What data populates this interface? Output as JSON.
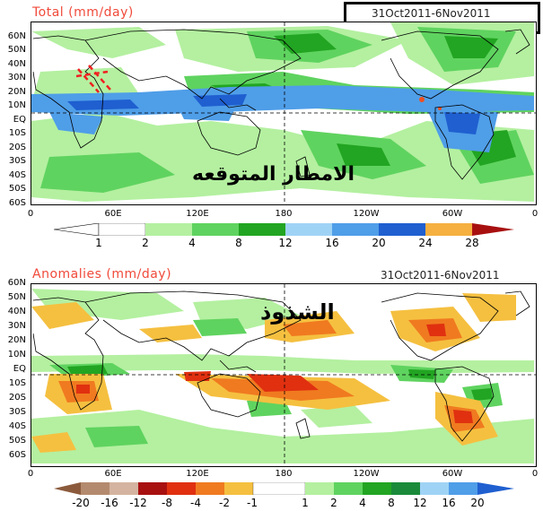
{
  "top_panel": {
    "title": "Total (mm/day)",
    "date": "31Oct2011-6Nov2011",
    "arabic_label": "الامطار المتوقعه",
    "lat_labels": [
      "60N",
      "50N",
      "40N",
      "30N",
      "20N",
      "10N",
      "EQ",
      "10S",
      "20S",
      "30S",
      "40S",
      "50S",
      "60S"
    ],
    "lon_labels": [
      "0",
      "60E",
      "120E",
      "180",
      "120W",
      "60W",
      "0"
    ],
    "colorbar": {
      "labels": [
        "1",
        "2",
        "4",
        "8",
        "12",
        "16",
        "20",
        "24",
        "28"
      ],
      "colors": [
        "#ffffff",
        "#b4f0a0",
        "#5fd35f",
        "#22a522",
        "#9fd3f5",
        "#4f9ee8",
        "#1f5fd0",
        "#f5b040",
        "#f05020",
        "#a81010"
      ]
    }
  },
  "bottom_panel": {
    "title": "Anomalies (mm/day)",
    "date": "31Oct2011-6Nov2011",
    "arabic_label": "الشذوذ",
    "lat_labels": [
      "60N",
      "50N",
      "40N",
      "30N",
      "20N",
      "10N",
      "EQ",
      "10S",
      "20S",
      "30S",
      "40S",
      "50S",
      "60S"
    ],
    "lon_labels": [
      "0",
      "60E",
      "120E",
      "180",
      "120W",
      "60W",
      "0"
    ],
    "colorbar": {
      "labels": [
        "-20",
        "-16",
        "-12",
        "-8",
        "-4",
        "-2",
        "-1",
        "1",
        "2",
        "4",
        "8",
        "12",
        "16",
        "20"
      ],
      "colors": [
        "#8b5a3c",
        "#b48a6e",
        "#d4b4a0",
        "#a81010",
        "#e03010",
        "#f07a20",
        "#f5c040",
        "#ffffff",
        "#b4f0a0",
        "#5fd35f",
        "#22a522",
        "#1a8a3a",
        "#9fd3f5",
        "#4f9ee8",
        "#1f5fd0"
      ]
    }
  }
}
